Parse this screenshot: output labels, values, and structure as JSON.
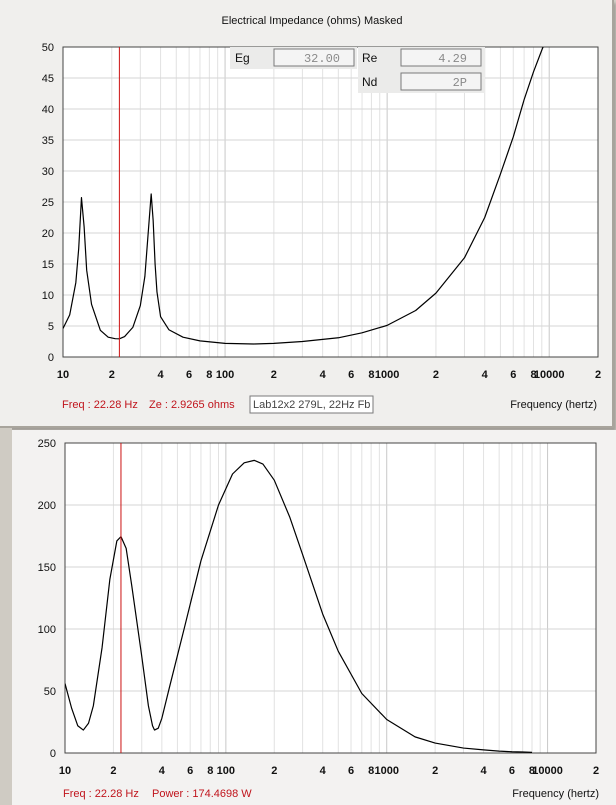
{
  "chart_data": [
    {
      "type": "line",
      "title": "Electrical Impedance (ohms)   Masked",
      "xlabel": "Frequency (hertz)",
      "x_scale": "log",
      "xlim": [
        10,
        20000
      ],
      "ylim": [
        0,
        50
      ],
      "y_ticks": [
        "0",
        "5",
        "10",
        "15",
        "20",
        "25",
        "30",
        "35",
        "40",
        "45",
        "50"
      ],
      "x_tick_labels": [
        {
          "x": 10,
          "label": "10"
        },
        {
          "x": 20,
          "label": "2"
        },
        {
          "x": 40,
          "label": "4"
        },
        {
          "x": 60,
          "label": "6"
        },
        {
          "x": 80,
          "label": "8"
        },
        {
          "x": 100,
          "label": "100"
        },
        {
          "x": 200,
          "label": "2"
        },
        {
          "x": 400,
          "label": "4"
        },
        {
          "x": 600,
          "label": "6"
        },
        {
          "x": 800,
          "label": "8"
        },
        {
          "x": 1000,
          "label": "1000"
        },
        {
          "x": 2000,
          "label": "2"
        },
        {
          "x": 4000,
          "label": "4"
        },
        {
          "x": 6000,
          "label": "6"
        },
        {
          "x": 8000,
          "label": "8"
        },
        {
          "x": 10000,
          "label": "10000"
        },
        {
          "x": 20000,
          "label": "2"
        }
      ],
      "grid": true,
      "cursor_hz": 22.28,
      "series": [
        {
          "color": "#000000",
          "x": [
            10,
            11,
            12,
            12.5,
            13,
            13.5,
            14,
            15,
            17,
            19,
            21,
            22.28,
            24,
            27,
            30,
            32,
            34,
            35,
            36,
            37,
            38,
            40,
            45,
            55,
            70,
            100,
            150,
            200,
            300,
            500,
            700,
            1000,
            1500,
            2000,
            3000,
            4000,
            5000,
            6000,
            7000,
            8000,
            9000,
            9500
          ],
          "y": [
            4.6,
            6.8,
            12,
            17.5,
            25.7,
            21,
            14,
            8.5,
            4.3,
            3.2,
            2.95,
            2.93,
            3.3,
            4.8,
            8.3,
            13,
            22,
            26.3,
            22,
            15,
            10.5,
            6.5,
            4.4,
            3.2,
            2.6,
            2.2,
            2.1,
            2.2,
            2.5,
            3.1,
            3.9,
            5.1,
            7.5,
            10.3,
            16,
            22.5,
            29.5,
            35.5,
            41.5,
            46,
            49.5,
            51
          ]
        }
      ],
      "info": {
        "eg_label": "Eg",
        "eg_value": "32.00",
        "re_label": "Re",
        "re_value": "4.29",
        "nd_label": "Nd",
        "nd_value": "2P"
      },
      "footer": {
        "freq": "Freq : 22.28 Hz",
        "second": "Ze : 2.9265 ohms",
        "legend": "Lab12x2 279L, 22Hz Fb"
      }
    },
    {
      "type": "line",
      "title": "",
      "xlabel": "Frequency (hertz)",
      "x_scale": "log",
      "xlim": [
        10,
        20000
      ],
      "ylim": [
        0,
        250
      ],
      "y_ticks": [
        "0",
        "50",
        "100",
        "150",
        "200",
        "250"
      ],
      "x_tick_labels": [
        {
          "x": 10,
          "label": "10"
        },
        {
          "x": 20,
          "label": "2"
        },
        {
          "x": 40,
          "label": "4"
        },
        {
          "x": 60,
          "label": "6"
        },
        {
          "x": 80,
          "label": "8"
        },
        {
          "x": 100,
          "label": "100"
        },
        {
          "x": 200,
          "label": "2"
        },
        {
          "x": 400,
          "label": "4"
        },
        {
          "x": 600,
          "label": "6"
        },
        {
          "x": 800,
          "label": "8"
        },
        {
          "x": 1000,
          "label": "1000"
        },
        {
          "x": 2000,
          "label": "2"
        },
        {
          "x": 4000,
          "label": "4"
        },
        {
          "x": 6000,
          "label": "6"
        },
        {
          "x": 8000,
          "label": "8"
        },
        {
          "x": 10000,
          "label": "10000"
        },
        {
          "x": 20000,
          "label": "2"
        }
      ],
      "grid": true,
      "cursor_hz": 22.28,
      "series": [
        {
          "color": "#000000",
          "x": [
            10,
            11,
            12,
            13,
            14,
            15,
            17,
            19,
            21,
            22.28,
            24,
            26,
            30,
            33,
            35,
            36,
            38,
            40,
            45,
            55,
            70,
            90,
            110,
            130,
            150,
            170,
            200,
            250,
            300,
            400,
            500,
            700,
            1000,
            1500,
            2000,
            3000,
            4000,
            5000,
            6000,
            7000,
            8000
          ],
          "y": [
            56,
            36,
            22,
            18.5,
            24,
            38,
            85,
            140,
            171,
            174.5,
            165,
            135,
            78,
            38,
            22,
            18.5,
            20,
            28,
            55,
            100,
            155,
            200,
            225,
            234,
            236,
            233,
            220,
            190,
            160,
            112,
            82,
            48,
            27,
            13,
            8,
            4,
            2.5,
            1.5,
            1,
            0.8,
            0.5
          ]
        }
      ],
      "footer": {
        "freq": "Freq : 22.28 Hz",
        "second": "Power : 174.4698 W"
      }
    }
  ]
}
